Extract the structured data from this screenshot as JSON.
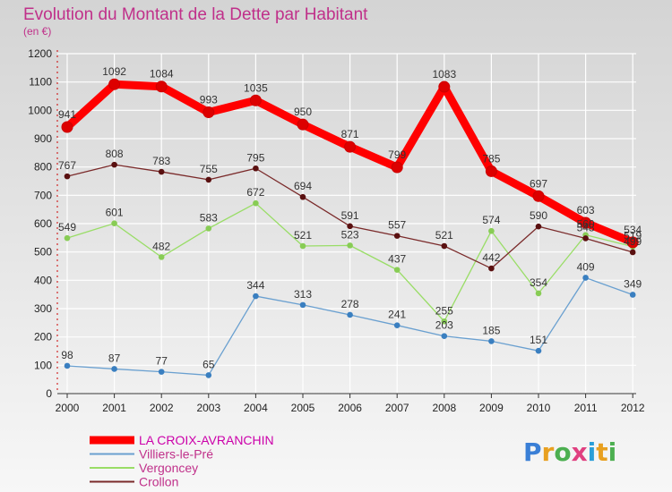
{
  "title": "Evolution du Montant de la Dette par Habitant",
  "subtitle": "(en €)",
  "brand": {
    "letters": [
      "P",
      "r",
      "o",
      "x",
      "i",
      "t",
      "i"
    ],
    "colors": [
      "#3a7fd6",
      "#e8a020",
      "#4caf50",
      "#e04080",
      "#2a9ed8",
      "#e8a020",
      "#4caf50"
    ]
  },
  "chart_data": {
    "type": "line",
    "x": [
      "2000",
      "2001",
      "2002",
      "2003",
      "2004",
      "2005",
      "2006",
      "2007",
      "2008",
      "2009",
      "2010",
      "2011",
      "2012"
    ],
    "ylim": [
      0,
      1200
    ],
    "yticks": [
      0,
      100,
      200,
      300,
      400,
      500,
      600,
      700,
      800,
      900,
      1000,
      1100,
      1200
    ],
    "grid": true,
    "legend_position": "bottom-left",
    "series": [
      {
        "name": "LA CROIX-AVRANCHIN",
        "color": "#ff0000",
        "point_color": "#dd0000",
        "values": [
          941,
          1092,
          1084,
          993,
          1035,
          950,
          871,
          799,
          1083,
          785,
          697,
          603,
          534
        ]
      },
      {
        "name": "Villiers-le-Pré",
        "color": "#6aa0d0",
        "point_color": "#3a7fc0",
        "values": [
          98,
          87,
          77,
          65,
          344,
          313,
          278,
          241,
          203,
          185,
          151,
          409,
          349
        ]
      },
      {
        "name": "Vergoncey",
        "color": "#99dd66",
        "point_color": "#88cc55",
        "values": [
          549,
          601,
          482,
          583,
          672,
          521,
          523,
          437,
          255,
          574,
          354,
          560,
          519
        ]
      },
      {
        "name": "Crollon",
        "color": "#7a2a2a",
        "point_color": "#5a1010",
        "values": [
          767,
          808,
          783,
          755,
          795,
          694,
          591,
          557,
          521,
          442,
          590,
          548,
          499
        ]
      }
    ]
  }
}
